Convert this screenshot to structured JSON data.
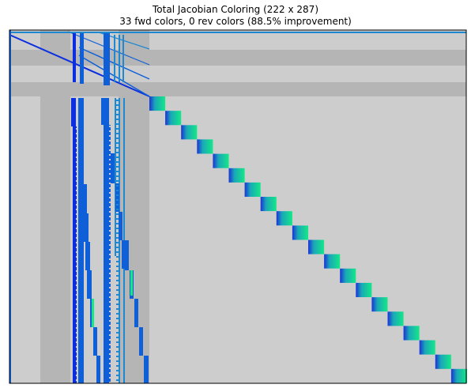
{
  "title_line1": "Total Jacobian Coloring (222 x 287)",
  "title_line2": "33 fwd colors, 0 rev colors (88.5% improvement)",
  "colors": {
    "background_light": "#cdcdcd",
    "band_dark": "#b5b5b5",
    "nonzero_dark_blue": "#0b2ee0",
    "nonzero_mid_blue": "#0f5fd8",
    "nonzero_light_blue": "#1e88d0",
    "block_gradient_start": "#1a33d6",
    "block_gradient_mid": "#1aa7b8",
    "block_gradient_end": "#14e887",
    "frame": "#000000"
  },
  "chart_data": {
    "type": "heatmap",
    "title": "Total Jacobian Coloring (222 x 287)",
    "subtitle": "33 fwd colors, 0 rev colors (88.5% improvement)",
    "rows": 222,
    "cols": 287,
    "fwd_colors": 33,
    "rev_colors": 0,
    "improvement_percent": 88.5,
    "diagonal_blocks": 20,
    "axes_visible": false,
    "legend": "none"
  }
}
